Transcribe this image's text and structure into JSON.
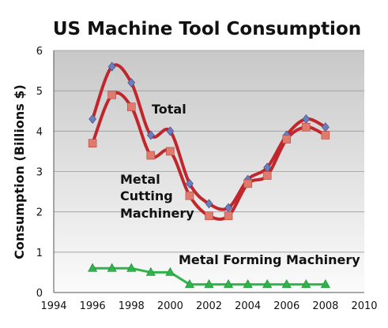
{
  "chart_data": {
    "type": "line",
    "title": "US Machine Tool Consumption",
    "xlabel": "",
    "ylabel": "Consumption (Billions $)",
    "xlim": [
      1994,
      2010
    ],
    "ylim": [
      0,
      6
    ],
    "xticks": [
      1994,
      1996,
      1998,
      2000,
      2002,
      2004,
      2006,
      2008,
      2010
    ],
    "yticks": [
      0,
      1,
      2,
      3,
      4,
      5,
      6
    ],
    "grid": true,
    "legend": "none",
    "series": [
      {
        "name": "Total",
        "color": "#c0272d",
        "marker": "diamond",
        "marker_color": "#6d7db8",
        "x": [
          1996,
          1997,
          1998,
          1999,
          2000,
          2001,
          2002,
          2003,
          2004,
          2005,
          2006,
          2007,
          2008
        ],
        "y": [
          4.3,
          5.6,
          5.2,
          3.9,
          4.0,
          2.7,
          2.2,
          2.1,
          2.8,
          3.1,
          3.9,
          4.3,
          4.1
        ]
      },
      {
        "name": "Metal Cutting Machinery",
        "color": "#c0272d",
        "marker": "square",
        "marker_color": "#e07a6c",
        "x": [
          1996,
          1997,
          1998,
          1999,
          2000,
          2001,
          2002,
          2003,
          2004,
          2005,
          2006,
          2007,
          2008
        ],
        "y": [
          3.7,
          4.9,
          4.6,
          3.4,
          3.5,
          2.4,
          1.9,
          1.9,
          2.7,
          2.9,
          3.8,
          4.1,
          3.9
        ]
      },
      {
        "name": "Metal Forming Machinery",
        "color": "#2fb34a",
        "marker": "triangle",
        "marker_color": "#2fb34a",
        "x": [
          1996,
          1997,
          1998,
          1999,
          2000,
          2001,
          2002,
          2003,
          2004,
          2005,
          2006,
          2007,
          2008
        ],
        "y": [
          0.6,
          0.6,
          0.6,
          0.5,
          0.5,
          0.2,
          0.2,
          0.2,
          0.2,
          0.2,
          0.2,
          0.2,
          0.2
        ]
      }
    ],
    "annotations": {
      "total": "Total",
      "cutting_line1": "Metal",
      "cutting_line2": "Cutting",
      "cutting_line3": "Machinery",
      "forming": "Metal Forming Machinery"
    }
  }
}
